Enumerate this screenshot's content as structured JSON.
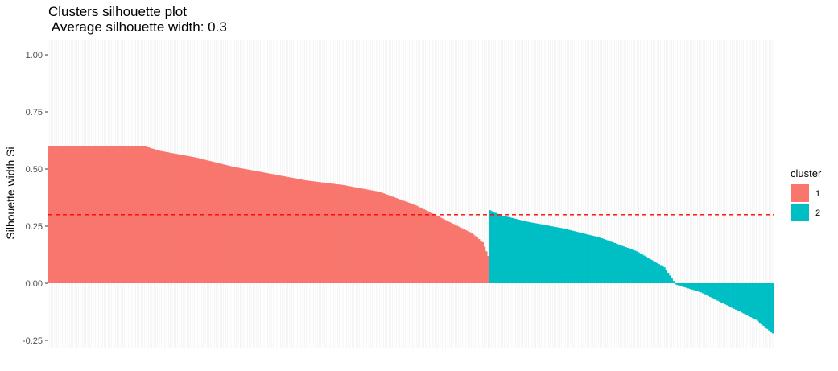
{
  "chart_data": {
    "type": "bar",
    "title": "Clusters silhouette plot",
    "subtitle": " Average silhouette width: 0.3",
    "xlabel": "",
    "ylabel": "Silhouette width Si",
    "ylim": [
      -0.28,
      1.02
    ],
    "yticks": [
      1.0,
      0.75,
      0.5,
      0.25,
      0.0,
      -0.25
    ],
    "ytick_labels": [
      "1.00",
      "0.75",
      "0.50",
      "0.25",
      "0.00",
      "-0.25"
    ],
    "average_line": {
      "value": 0.3,
      "color": "#ff0000",
      "style": "dashed"
    },
    "grid": "vertical-minor",
    "legend": {
      "title": "cluster",
      "position": "right",
      "entries": [
        {
          "label": "1",
          "color": "#f8766d"
        },
        {
          "label": "2",
          "color": "#00bfc4"
        }
      ]
    },
    "series": [
      {
        "cluster": "1",
        "color": "#f8766d",
        "count": 240,
        "profile": [
          [
            0,
            0.6
          ],
          [
            52,
            0.6
          ],
          [
            60,
            0.58
          ],
          [
            80,
            0.55
          ],
          [
            100,
            0.51
          ],
          [
            120,
            0.48
          ],
          [
            140,
            0.45
          ],
          [
            160,
            0.43
          ],
          [
            180,
            0.4
          ],
          [
            200,
            0.34
          ],
          [
            220,
            0.26
          ],
          [
            230,
            0.22
          ],
          [
            236,
            0.18
          ],
          [
            239,
            0.12
          ]
        ]
      },
      {
        "cluster": "2",
        "color": "#00bfc4",
        "count": 155,
        "profile": [
          [
            0,
            0.32
          ],
          [
            5,
            0.3
          ],
          [
            20,
            0.27
          ],
          [
            40,
            0.24
          ],
          [
            60,
            0.2
          ],
          [
            80,
            0.14
          ],
          [
            95,
            0.07
          ],
          [
            100,
            0.01
          ],
          [
            101,
            -0.005
          ],
          [
            115,
            -0.04
          ],
          [
            130,
            -0.1
          ],
          [
            145,
            -0.16
          ],
          [
            154,
            -0.22
          ]
        ]
      }
    ]
  }
}
